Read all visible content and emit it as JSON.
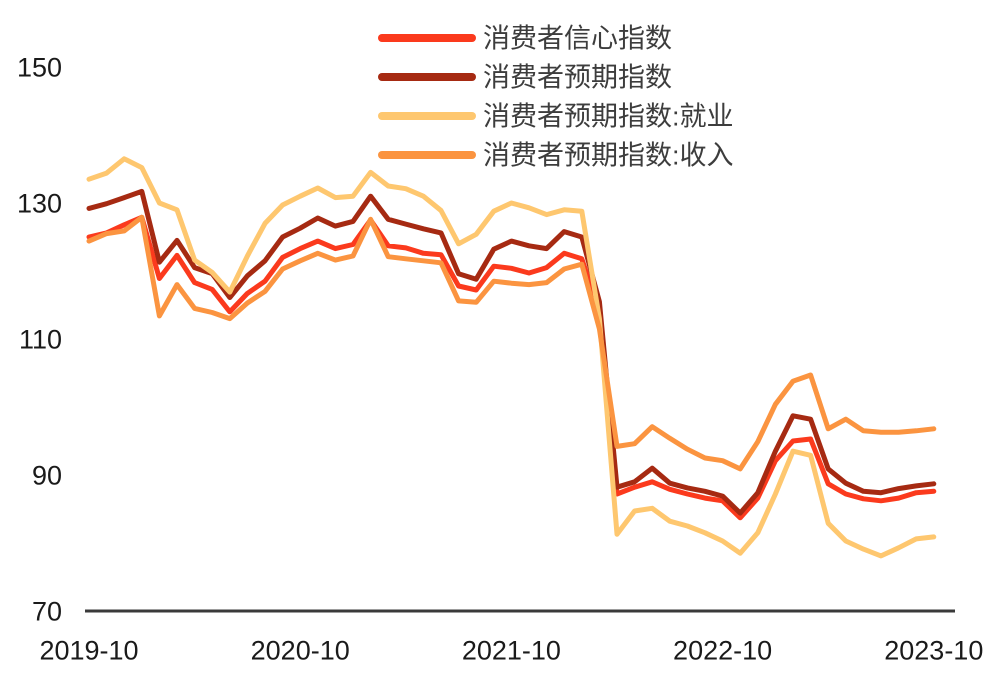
{
  "chart_data": {
    "type": "line",
    "title": "",
    "xlabel": "",
    "ylabel": "",
    "grid": false,
    "background": "#ffffff",
    "axis_color": "#3a3a3a",
    "tick_label_color": "#1a1a1a",
    "legend_text_color": "#3d3d3d",
    "legend_position": "top-center",
    "y_ticks": [
      70,
      90,
      110,
      130,
      150
    ],
    "ylim": [
      70,
      155
    ],
    "x_tick_labels": [
      "2019-10",
      "2020-10",
      "2021-10",
      "2022-10",
      "2023-10"
    ],
    "x_tick_month_indices": [
      0,
      12,
      24,
      36,
      48
    ],
    "x_months": [
      "2019-10",
      "2019-11",
      "2019-12",
      "2020-01",
      "2020-02",
      "2020-03",
      "2020-04",
      "2020-05",
      "2020-06",
      "2020-07",
      "2020-08",
      "2020-09",
      "2020-10",
      "2020-11",
      "2020-12",
      "2021-01",
      "2021-02",
      "2021-03",
      "2021-04",
      "2021-05",
      "2021-06",
      "2021-07",
      "2021-08",
      "2021-09",
      "2021-10",
      "2021-11",
      "2021-12",
      "2022-01",
      "2022-02",
      "2022-03",
      "2022-04",
      "2022-05",
      "2022-06",
      "2022-07",
      "2022-08",
      "2022-09",
      "2022-10",
      "2022-11",
      "2022-12",
      "2023-01",
      "2023-02",
      "2023-03",
      "2023-04",
      "2023-05",
      "2023-06",
      "2023-07",
      "2023-08",
      "2023-09",
      "2023-10"
    ],
    "series": [
      {
        "id": "consumer-confidence-index",
        "name": "消费者信心指数",
        "color": "#FB3A1D",
        "values": [
          125.0,
          125.6,
          126.8,
          127.9,
          118.9,
          122.3,
          118.3,
          117.3,
          114.0,
          116.7,
          118.5,
          122.0,
          123.3,
          124.4,
          123.3,
          123.9,
          127.5,
          123.7,
          123.4,
          122.6,
          122.4,
          117.8,
          117.2,
          120.7,
          120.4,
          119.7,
          120.5,
          122.6,
          121.8,
          114.0,
          87.2,
          88.2,
          89.0,
          87.9,
          87.2,
          86.6,
          86.2,
          83.7,
          86.6,
          92.1,
          95.0,
          95.3,
          88.7,
          87.2,
          86.5,
          86.2,
          86.6,
          87.4,
          87.6
        ]
      },
      {
        "id": "consumer-expectation-index",
        "name": "消费者预期指数",
        "color": "#A62A12",
        "values": [
          129.2,
          129.9,
          130.8,
          131.7,
          121.3,
          124.5,
          120.5,
          119.6,
          116.1,
          119.3,
          121.5,
          125.0,
          126.3,
          127.8,
          126.6,
          127.3,
          131.0,
          127.6,
          126.9,
          126.2,
          125.6,
          119.6,
          118.8,
          123.2,
          124.4,
          123.7,
          123.3,
          125.8,
          125.0,
          115.5,
          88.2,
          89.0,
          91.0,
          88.8,
          88.1,
          87.6,
          86.9,
          84.4,
          87.4,
          93.5,
          98.7,
          98.2,
          90.9,
          88.8,
          87.6,
          87.4,
          88.0,
          88.4,
          88.7
        ]
      },
      {
        "id": "consumer-expectation-employment",
        "name": "消费者预期指数:就业",
        "color": "#FEC76F",
        "values": [
          133.5,
          134.4,
          136.5,
          135.2,
          130.0,
          129.0,
          121.6,
          119.8,
          116.9,
          122.2,
          127.0,
          129.7,
          131.0,
          132.2,
          130.8,
          131.0,
          134.5,
          132.5,
          132.1,
          131.0,
          128.9,
          124.0,
          125.4,
          128.8,
          130.0,
          129.3,
          128.3,
          129.0,
          128.8,
          113.0,
          81.3,
          84.7,
          85.1,
          83.2,
          82.5,
          81.5,
          80.3,
          78.5,
          81.5,
          87.2,
          93.5,
          92.9,
          82.9,
          80.3,
          79.1,
          78.1,
          79.3,
          80.6,
          80.9
        ]
      },
      {
        "id": "consumer-expectation-income",
        "name": "消费者预期指数:收入",
        "color": "#FB9440",
        "values": [
          124.4,
          125.5,
          125.9,
          127.9,
          113.4,
          118.0,
          114.5,
          113.9,
          113.0,
          115.3,
          117.0,
          120.3,
          121.5,
          122.6,
          121.6,
          122.2,
          127.6,
          122.1,
          121.8,
          121.5,
          121.2,
          115.6,
          115.4,
          118.5,
          118.2,
          118.0,
          118.3,
          120.3,
          121.0,
          111.5,
          94.2,
          94.6,
          97.1,
          95.4,
          93.8,
          92.5,
          92.1,
          90.9,
          94.9,
          100.4,
          103.8,
          104.7,
          96.8,
          98.2,
          96.5,
          96.3,
          96.3,
          96.5,
          96.8
        ]
      }
    ]
  },
  "layout_hints": {
    "line_width": 5,
    "legend_swatch_width": 90,
    "legend_swatch_thickness": 8
  }
}
